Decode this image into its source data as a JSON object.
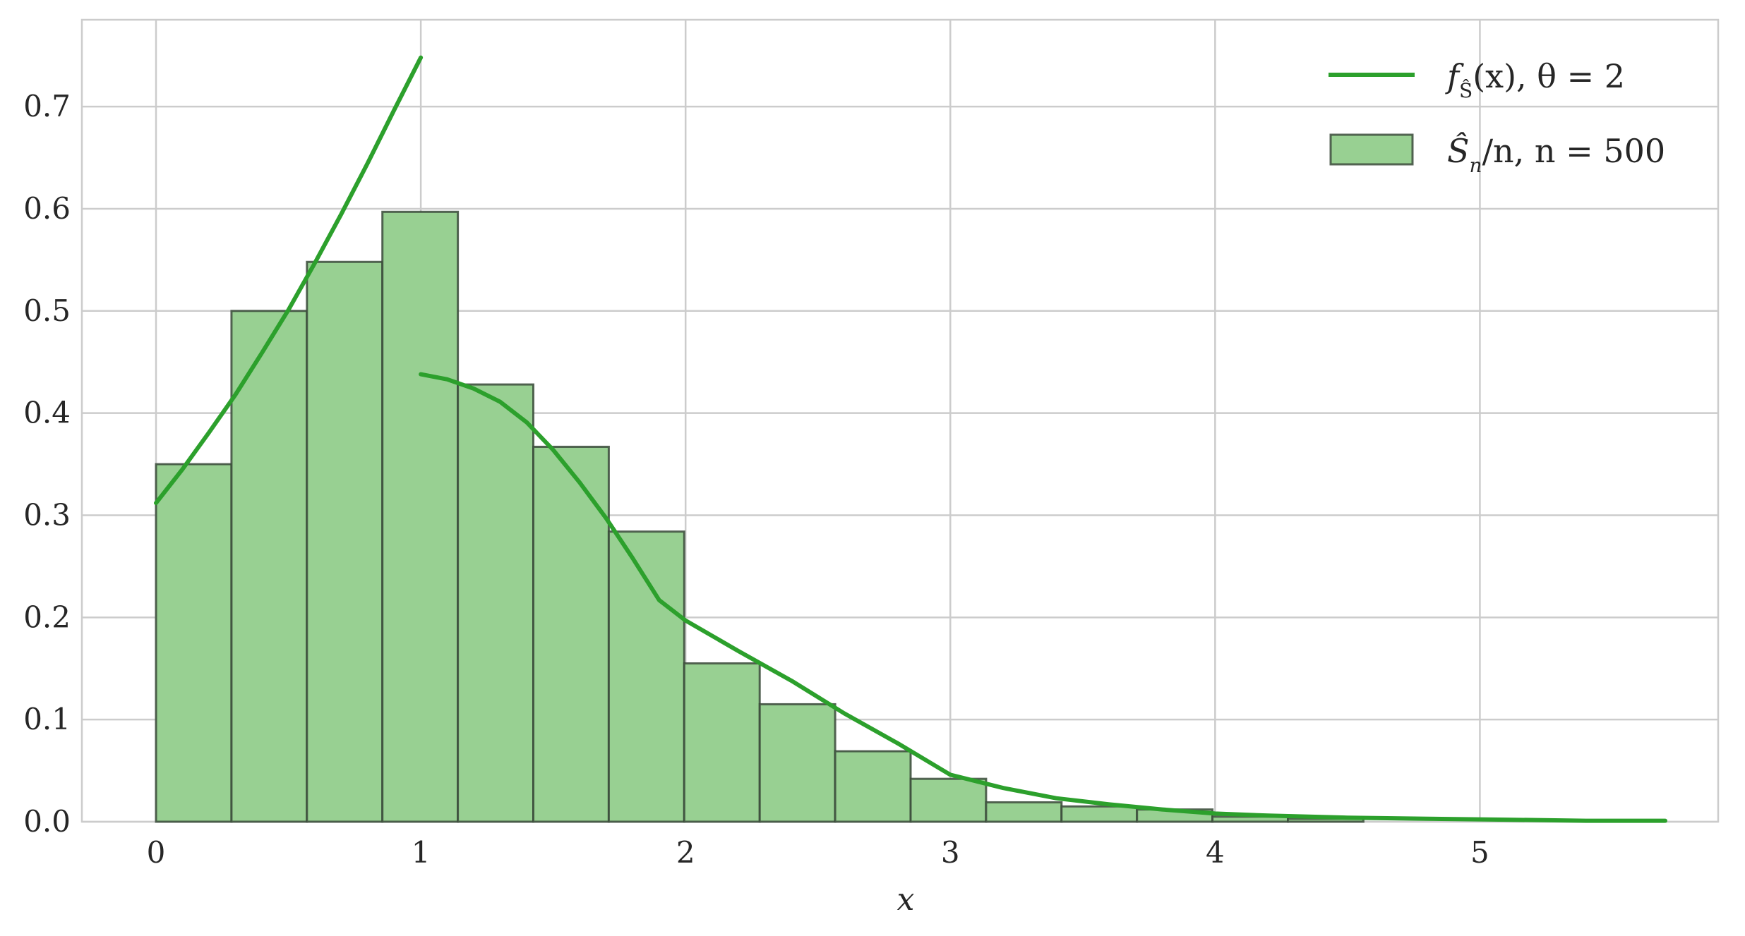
{
  "chart_data": {
    "type": "bar",
    "title": "",
    "xlabel": "x",
    "ylabel": "",
    "xlim": [
      -0.28,
      5.9
    ],
    "ylim": [
      0.0,
      0.785
    ],
    "x_ticks": [
      0,
      1,
      2,
      3,
      4,
      5
    ],
    "x_tick_labels": [
      "0",
      "1",
      "2",
      "3",
      "4",
      "5"
    ],
    "y_ticks": [
      0.0,
      0.1,
      0.2,
      0.3,
      0.4,
      0.5,
      0.6,
      0.7
    ],
    "y_tick_labels": [
      "0.0",
      "0.1",
      "0.2",
      "0.3",
      "0.4",
      "0.5",
      "0.6",
      "0.7"
    ],
    "grid": true,
    "legend_position": "top-right",
    "colors": {
      "line": "#2ca02c",
      "bar_fill": "#98d092",
      "bar_edge": "#3a4a3a",
      "grid": "#cccccc",
      "spine": "#cccccc"
    },
    "series": [
      {
        "name": "density",
        "kind": "line",
        "legend": "f",
        "legend_sub": "Ŝ",
        "legend_rest": "(x), θ = 2",
        "segments": [
          {
            "x": [
              0.0,
              0.1,
              0.2,
              0.3,
              0.4,
              0.5,
              0.6,
              0.7,
              0.8,
              0.9,
              1.0
            ],
            "y": [
              0.312,
              0.345,
              0.381,
              0.418,
              0.459,
              0.501,
              0.547,
              0.595,
              0.645,
              0.697,
              0.748
            ]
          },
          {
            "x": [
              1.0,
              1.1,
              1.2,
              1.3,
              1.4,
              1.5,
              1.6,
              1.7,
              1.8,
              1.9,
              2.0,
              2.2,
              2.4,
              2.6,
              2.8,
              3.0,
              3.2,
              3.4,
              3.6,
              3.8,
              4.0,
              4.2,
              4.5,
              4.8,
              5.1,
              5.4,
              5.7
            ],
            "y": [
              0.438,
              0.433,
              0.424,
              0.411,
              0.391,
              0.364,
              0.332,
              0.297,
              0.258,
              0.217,
              0.197,
              0.167,
              0.138,
              0.106,
              0.077,
              0.046,
              0.033,
              0.023,
              0.017,
              0.012,
              0.008,
              0.006,
              0.004,
              0.003,
              0.002,
              0.001,
              0.001
            ]
          }
        ]
      },
      {
        "name": "histogram",
        "kind": "bar",
        "legend_main": "Ŝ",
        "legend_sub": "n",
        "legend_rest": "/n, n = 500",
        "bin_edges": [
          0.0,
          0.285,
          0.57,
          0.855,
          1.14,
          1.425,
          1.71,
          1.995,
          2.28,
          2.565,
          2.85,
          3.135,
          3.42,
          3.705,
          3.99,
          4.275,
          4.56
        ],
        "values": [
          0.35,
          0.5,
          0.548,
          0.597,
          0.428,
          0.367,
          0.284,
          0.155,
          0.115,
          0.069,
          0.042,
          0.019,
          0.015,
          0.012,
          0.005,
          0.003
        ]
      }
    ]
  }
}
